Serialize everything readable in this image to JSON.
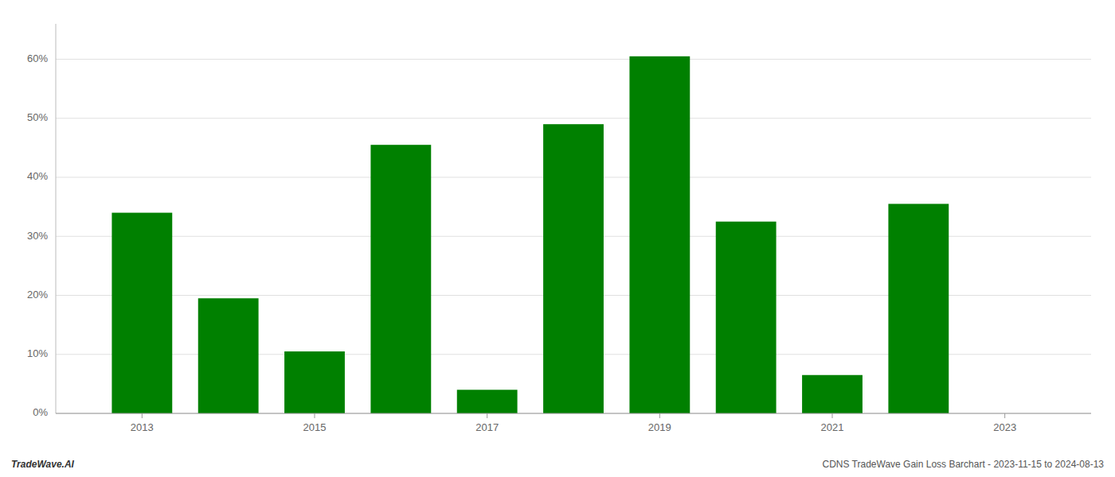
{
  "chart_data": {
    "type": "bar",
    "x": [
      2013,
      2014,
      2015,
      2016,
      2017,
      2018,
      2019,
      2020,
      2021,
      2022,
      2023
    ],
    "values": [
      34.0,
      19.5,
      10.5,
      45.5,
      4.0,
      49.0,
      60.5,
      32.5,
      6.5,
      35.5,
      0.0
    ],
    "color": "#008000",
    "xlim": [
      2012.0,
      2024.0
    ],
    "xticks": [
      2013,
      2015,
      2017,
      2019,
      2021,
      2023
    ],
    "ylim": [
      0,
      66
    ],
    "yticks": [
      {
        "value": 0,
        "label": "0%"
      },
      {
        "value": 10,
        "label": "10%"
      },
      {
        "value": 20,
        "label": "20%"
      },
      {
        "value": 30,
        "label": "30%"
      },
      {
        "value": 40,
        "label": "40%"
      },
      {
        "value": 50,
        "label": "50%"
      },
      {
        "value": 60,
        "label": "60%"
      }
    ],
    "grid": true,
    "annotations": [
      "TradeWave.AI",
      "CDNS TradeWave Gain Loss Barchart - 2023-11-15 to 2024-08-13"
    ]
  }
}
